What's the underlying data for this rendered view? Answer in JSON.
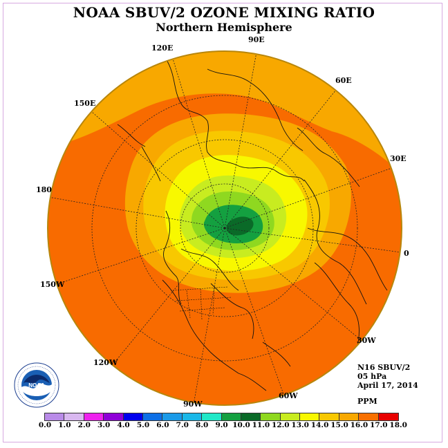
{
  "header": {
    "title": "NOAA SBUV/2 OZONE MIXING RATIO",
    "subtitle": "Northern Hemisphere"
  },
  "longitude_labels": [
    {
      "text": "90E"
    },
    {
      "text": "60E"
    },
    {
      "text": "30E"
    },
    {
      "text": "0"
    },
    {
      "text": "30W"
    },
    {
      "text": "60W"
    },
    {
      "text": "90W"
    },
    {
      "text": "120W"
    },
    {
      "text": "150W"
    },
    {
      "text": "180"
    },
    {
      "text": "150E"
    },
    {
      "text": "120E"
    }
  ],
  "info": {
    "instrument": "N16 SBUV/2",
    "level": "05 hPa",
    "date": "April 17, 2014",
    "units": "PPM"
  },
  "colorbar": {
    "ticks": [
      "0.0",
      "1.0",
      "2.0",
      "3.0",
      "4.0",
      "5.0",
      "6.0",
      "7.0",
      "8.0",
      "9.0",
      "10.0",
      "11.0",
      "12.0",
      "13.0",
      "14.0",
      "15.0",
      "16.0",
      "17.0",
      "18.0"
    ],
    "colors": [
      "#b98be8",
      "#d9b8f0",
      "#ee22ee",
      "#8f00d8",
      "#0000ee",
      "#0d6fe6",
      "#1a9ae8",
      "#1ab8e8",
      "#20e8c8",
      "#14a040",
      "#0a6a28",
      "#8fd820",
      "#c8ec20",
      "#f8f800",
      "#f8c800",
      "#f8a800",
      "#f87000",
      "#e80000",
      "#8b5a2b"
    ]
  },
  "map_colors": {
    "ocean_orange": "#f86b00",
    "light_orange": "#f8a800",
    "gold": "#f8c800",
    "yellow": "#f8f800",
    "yellow_green": "#c8ec20",
    "light_green": "#8fd820",
    "green": "#14a040",
    "dark_green": "#0a6a28"
  },
  "logo": {
    "name": "NOAA"
  }
}
